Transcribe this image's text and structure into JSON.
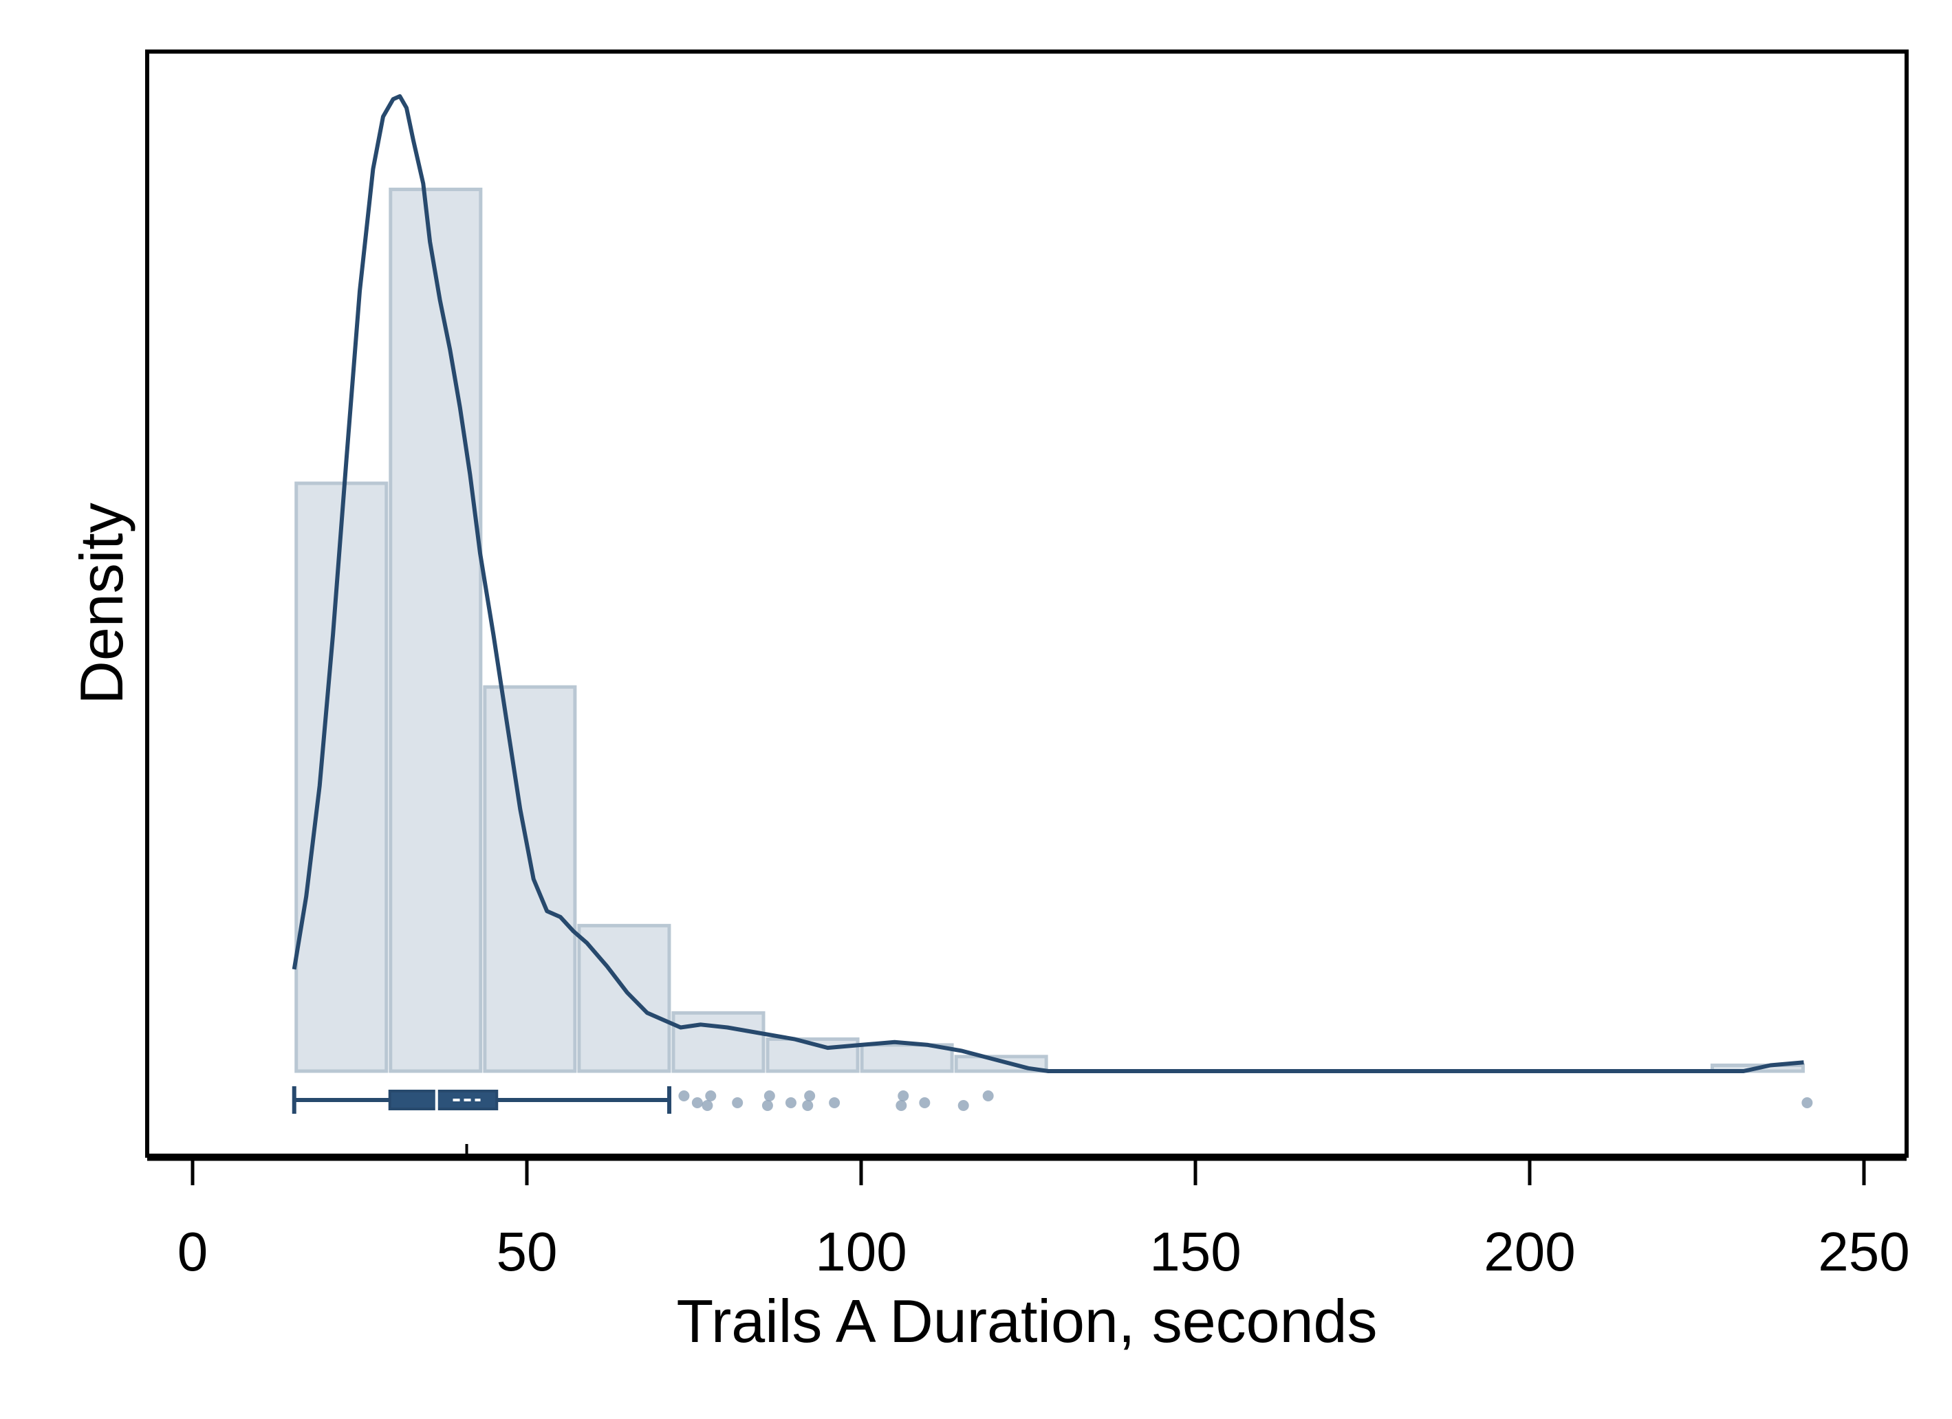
{
  "chart_data": {
    "type": "histogram",
    "xlabel": "Trails A Duration, seconds",
    "ylabel": "Density",
    "xlim": [
      0,
      250
    ],
    "xticks": [
      0,
      50,
      100,
      150,
      200,
      250
    ],
    "xtick_labels": [
      "0",
      "50",
      "100",
      "150",
      "200",
      "250"
    ],
    "y_tick_labels_shown": false,
    "colors": {
      "bar_fill": "#dce3ea",
      "bar_stroke": "#b9c7d3",
      "curve": "#27496d",
      "box": "#2c5279",
      "outlier": "#8ea3b8"
    },
    "histogram": {
      "bins": [
        {
          "x0": 15.2,
          "x1": 29.3,
          "density": 0.0202
        },
        {
          "x0": 29.3,
          "x1": 43.4,
          "density": 0.0303
        },
        {
          "x0": 43.4,
          "x1": 57.5,
          "density": 0.0132
        },
        {
          "x0": 57.5,
          "x1": 71.6,
          "density": 0.005
        },
        {
          "x0": 71.6,
          "x1": 85.7,
          "density": 0.002
        },
        {
          "x0": 85.7,
          "x1": 99.8,
          "density": 0.0011
        },
        {
          "x0": 99.8,
          "x1": 113.9,
          "density": 0.0009
        },
        {
          "x0": 113.9,
          "x1": 128.0,
          "density": 0.0005
        },
        {
          "x0": 128.0,
          "x1": 227.0,
          "density": 0.0
        },
        {
          "x0": 227.0,
          "x1": 241.2,
          "density": 0.0002
        }
      ]
    },
    "density_curve": {
      "x": [
        15.2,
        17,
        19,
        21,
        23,
        25,
        27,
        28.5,
        30,
        31,
        32,
        33,
        34.5,
        35.5,
        37,
        38.5,
        40,
        41.5,
        43,
        45,
        47,
        49,
        51,
        53,
        55,
        57,
        59,
        62,
        65,
        68,
        71,
        73,
        76,
        80,
        85,
        90,
        95,
        100,
        105,
        110,
        115,
        120,
        125,
        128,
        140,
        160,
        180,
        200,
        220,
        232,
        236,
        241
      ],
      "y": [
        0.0035,
        0.006,
        0.0098,
        0.015,
        0.021,
        0.0268,
        0.031,
        0.0328,
        0.0334,
        0.0335,
        0.0331,
        0.032,
        0.0305,
        0.0285,
        0.0265,
        0.0248,
        0.0228,
        0.0205,
        0.0178,
        0.015,
        0.012,
        0.009,
        0.0066,
        0.0055,
        0.0053,
        0.0048,
        0.0044,
        0.0036,
        0.0027,
        0.002,
        0.0017,
        0.0015,
        0.0016,
        0.0015,
        0.0013,
        0.0011,
        0.0008,
        0.0009,
        0.001,
        0.0009,
        0.0007,
        0.0004,
        0.0001,
        0.0,
        0.0,
        0.0,
        0.0,
        0.0,
        0.0,
        0.0,
        0.0002,
        0.0003
      ]
    },
    "boxplot": {
      "whisker_low": 15.2,
      "q1": 29.5,
      "median": 36.5,
      "q3": 45.5,
      "whisker_high": 71.3,
      "mean": 41.0,
      "outliers": [
        73.5,
        75.5,
        77.0,
        77.5,
        81.5,
        86.0,
        86.3,
        89.5,
        92.0,
        92.3,
        96.0,
        106.0,
        106.3,
        109.5,
        115.3,
        119.0,
        241.5
      ]
    }
  }
}
